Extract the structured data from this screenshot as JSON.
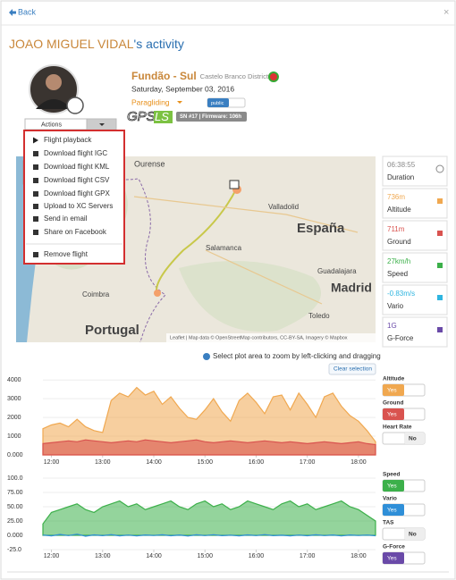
{
  "header": {
    "back": "Back",
    "close": "×",
    "title_name": "JOAO MIGUEL VIDAL",
    "title_suffix": "'s activity"
  },
  "flight": {
    "site": "Fundão - Sul",
    "region": "Castelo Branco District",
    "date": "Saturday, September 03, 2016",
    "activity": "Paragliding",
    "visibility": "public",
    "device_logo": "GPS",
    "device_logo_suffix": "LS",
    "device_info": "SN #17 | Firmware: 106h"
  },
  "actions": {
    "button": "Actions",
    "items": [
      "Flight playback",
      "Download flight IGC",
      "Download flight KML",
      "Download flight CSV",
      "Download flight GPX",
      "Upload to XC Servers",
      "Send in email",
      "Share on Facebook"
    ],
    "remove": "Remove flight"
  },
  "map": {
    "labels": [
      "Ourense",
      "Valladolid",
      "España",
      "Salamanca",
      "Guadalajara",
      "Madrid",
      "Coimbra",
      "Toledo",
      "Portugal"
    ],
    "attribution": "Leaflet | Map data © OpenStreetMap contributors, CC-BY-SA, Imagery © Mapbox"
  },
  "stats": [
    {
      "value": "06:38:55",
      "label": "Duration",
      "color": "#888888"
    },
    {
      "value": "736m",
      "label": "Altitude",
      "color": "#f0a850"
    },
    {
      "value": "711m",
      "label": "Ground",
      "color": "#d9534f"
    },
    {
      "value": "27km/h",
      "label": "Speed",
      "color": "#3cb04a"
    },
    {
      "value": "-0.83m/s",
      "label": "Vario",
      "color": "#2fb5e0"
    },
    {
      "value": "1G",
      "label": "G-Force",
      "color": "#6a4aa8"
    }
  ],
  "plot": {
    "hint": "Select plot area to zoom by left-clicking and dragging",
    "clear": "Clear selection"
  },
  "chart_data": [
    {
      "type": "area",
      "x": [
        "11:50",
        "12:00",
        "12:10",
        "12:20",
        "12:30",
        "12:40",
        "12:50",
        "13:00",
        "13:10",
        "13:20",
        "13:30",
        "13:40",
        "13:50",
        "14:00",
        "14:10",
        "14:20",
        "14:30",
        "14:40",
        "14:50",
        "15:00",
        "15:10",
        "15:20",
        "15:30",
        "15:40",
        "15:50",
        "16:00",
        "16:10",
        "16:20",
        "16:30",
        "16:40",
        "16:50",
        "17:00",
        "17:10",
        "17:20",
        "17:30",
        "17:40",
        "17:50",
        "18:00",
        "18:10",
        "18:20"
      ],
      "xlim": [
        "11:50",
        "18:20"
      ],
      "xticks": [
        "12:00",
        "13:00",
        "14:00",
        "15:00",
        "16:00",
        "17:00",
        "18:00"
      ],
      "ylim": [
        0,
        4200
      ],
      "yticks": [
        {
          "value": 0,
          "label": "0.000"
        },
        1000,
        2000,
        3000,
        4000
      ],
      "grid": true,
      "series": [
        {
          "name": "Altitude",
          "color": "#f0a850",
          "state": "Yes",
          "values": [
            1400,
            1600,
            1700,
            1500,
            1900,
            1500,
            1300,
            1200,
            2900,
            3300,
            3100,
            3600,
            3200,
            3400,
            2700,
            3100,
            2500,
            2000,
            1900,
            2400,
            3000,
            2300,
            1800,
            2900,
            3300,
            2800,
            2200,
            3100,
            3200,
            2400,
            3300,
            2700,
            2000,
            3100,
            3300,
            2600,
            2100,
            1800,
            1300,
            700
          ]
        },
        {
          "name": "Ground",
          "color": "#d9534f",
          "state": "Yes",
          "values": [
            600,
            650,
            700,
            750,
            700,
            800,
            750,
            700,
            650,
            700,
            750,
            700,
            800,
            750,
            700,
            650,
            700,
            750,
            800,
            700,
            650,
            700,
            750,
            700,
            650,
            700,
            750,
            700,
            650,
            700,
            650,
            600,
            650,
            700,
            650,
            600,
            650,
            700,
            600,
            550
          ]
        }
      ],
      "extra_toggles": [
        {
          "name": "Heart Rate",
          "state": "No"
        }
      ]
    },
    {
      "type": "area",
      "x": [
        "11:50",
        "12:00",
        "12:10",
        "12:20",
        "12:30",
        "12:40",
        "12:50",
        "13:00",
        "13:10",
        "13:20",
        "13:30",
        "13:40",
        "13:50",
        "14:00",
        "14:10",
        "14:20",
        "14:30",
        "14:40",
        "14:50",
        "15:00",
        "15:10",
        "15:20",
        "15:30",
        "15:40",
        "15:50",
        "16:00",
        "16:10",
        "16:20",
        "16:30",
        "16:40",
        "16:50",
        "17:00",
        "17:10",
        "17:20",
        "17:30",
        "17:40",
        "17:50",
        "18:00",
        "18:10",
        "18:20"
      ],
      "xlim": [
        "11:50",
        "18:20"
      ],
      "xticks": [
        "12:00",
        "13:00",
        "14:00",
        "15:00",
        "16:00",
        "17:00",
        "18:00"
      ],
      "ylim": [
        -25,
        100
      ],
      "yticks": [
        {
          "value": -25,
          "label": "-25.0"
        },
        {
          "value": 0,
          "label": "0.000"
        },
        {
          "value": 25,
          "label": "25.00"
        },
        {
          "value": 50,
          "label": "50.00"
        },
        {
          "value": 75,
          "label": "75.00"
        },
        {
          "value": 100,
          "label": "100.0"
        }
      ],
      "grid": true,
      "series": [
        {
          "name": "Speed",
          "color": "#3cb04a",
          "state": "Yes",
          "values": [
            20,
            40,
            45,
            50,
            55,
            45,
            40,
            50,
            55,
            60,
            50,
            55,
            45,
            50,
            55,
            60,
            50,
            45,
            55,
            60,
            50,
            55,
            45,
            50,
            60,
            55,
            50,
            45,
            55,
            60,
            50,
            55,
            45,
            50,
            55,
            60,
            50,
            45,
            35,
            25
          ]
        },
        {
          "name": "Vario",
          "color": "#2f8fd8",
          "state": "Yes",
          "values": [
            0.5,
            -1,
            1.5,
            -0.5,
            2,
            -1.5,
            0.8,
            -0.6,
            1.2,
            -0.9,
            0.4,
            -1.1,
            0.7,
            -0.3,
            1,
            -0.8,
            0.6,
            -1.2,
            0.9,
            -0.4,
            1.1,
            -0.7,
            0.3,
            -1,
            0.8,
            -0.5,
            1.3,
            -0.6,
            0.2,
            -0.9,
            0.5,
            -0.8,
            1,
            -0.4,
            0.6,
            -1.1,
            0.7,
            -0.3,
            0.4,
            -0.8
          ]
        }
      ],
      "extra_toggles": [
        {
          "name": "TAS",
          "state": "No"
        },
        {
          "name": "G-Force",
          "state": "Yes",
          "color": "#6a4aa8"
        }
      ]
    }
  ]
}
